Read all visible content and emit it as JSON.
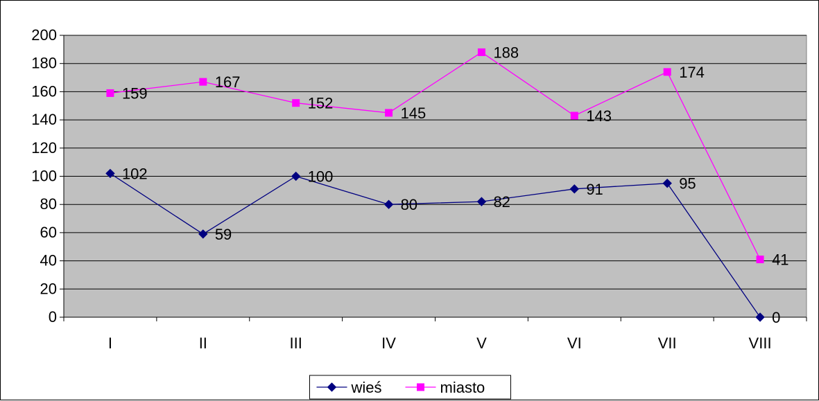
{
  "chart_data": {
    "type": "line",
    "categories": [
      "I",
      "II",
      "III",
      "IV",
      "V",
      "VI",
      "VII",
      "VIII"
    ],
    "series": [
      {
        "name": "wieś",
        "values": [
          102,
          59,
          100,
          80,
          82,
          91,
          95,
          0
        ],
        "color": "#000080",
        "marker": "diamond"
      },
      {
        "name": "miasto",
        "values": [
          159,
          167,
          152,
          145,
          188,
          143,
          174,
          41
        ],
        "color": "#FF00FF",
        "marker": "square"
      }
    ],
    "ylim": [
      0,
      200
    ],
    "yticks": [
      0,
      20,
      40,
      60,
      80,
      100,
      120,
      140,
      160,
      180,
      200
    ],
    "plot_background": "#C0C0C0",
    "gridlines": true,
    "data_labels": true,
    "legend_position": "bottom"
  }
}
